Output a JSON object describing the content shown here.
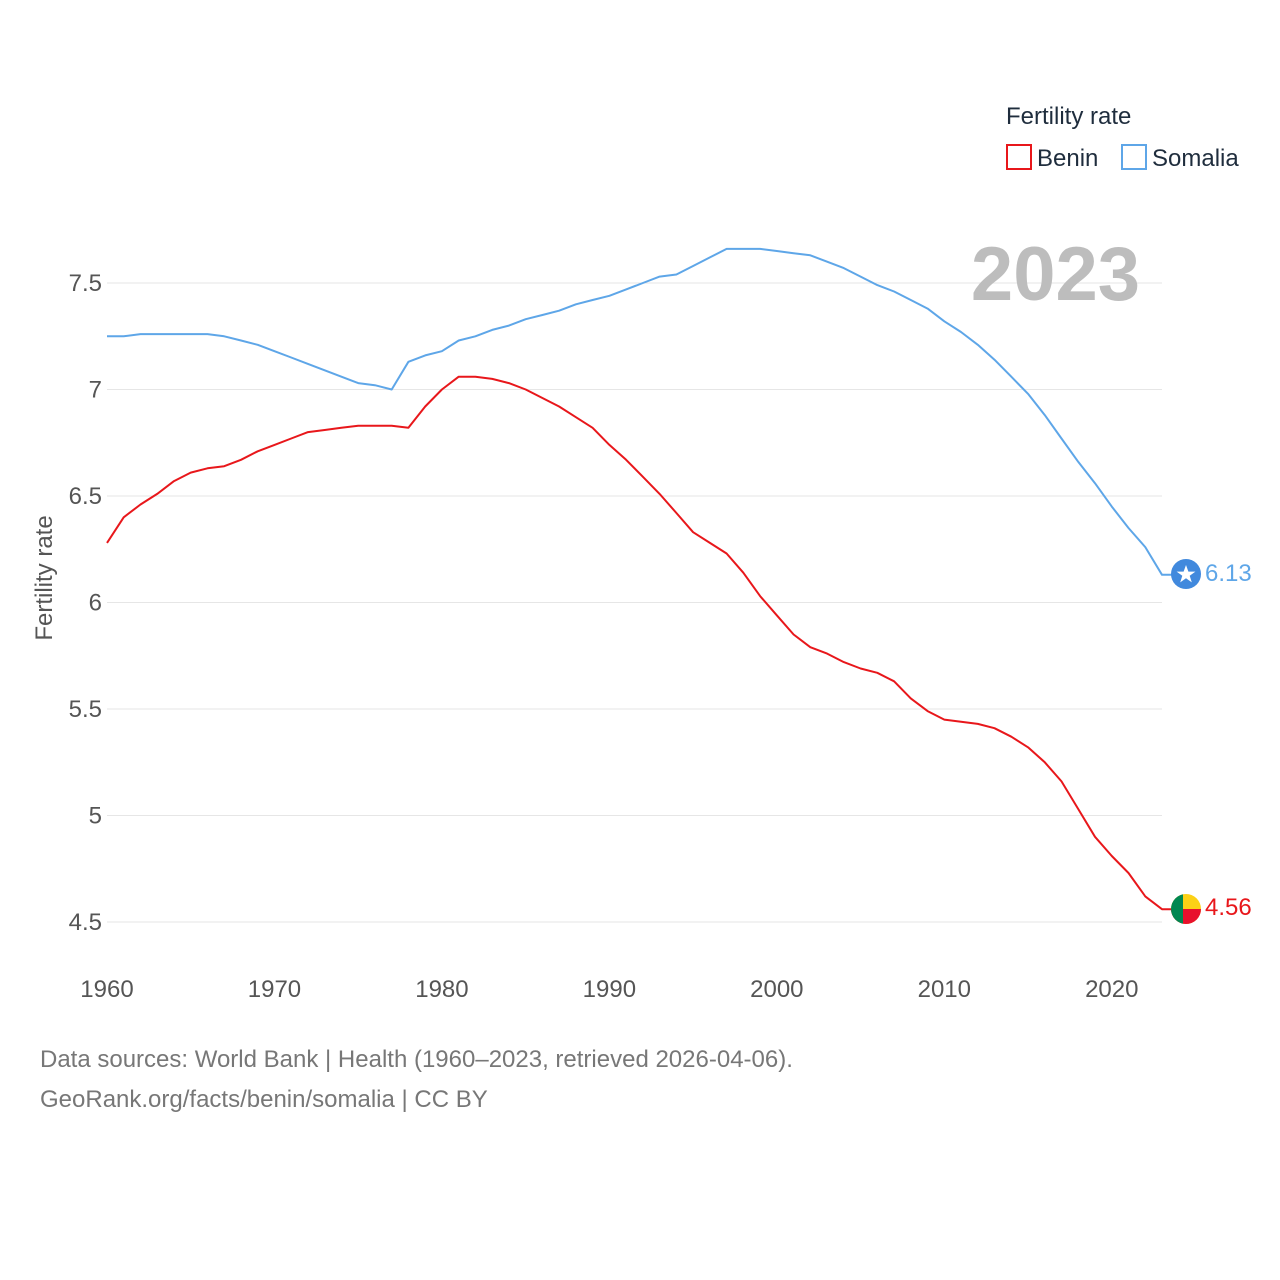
{
  "chart_data": {
    "type": "line",
    "title": "Fertility rate",
    "xlabel": "",
    "ylabel": "Fertility rate",
    "year_overlay": "2023",
    "xlim": [
      1960,
      2023
    ],
    "ylim": [
      4.5,
      7.5
    ],
    "x_ticks": [
      "1960",
      "1970",
      "1980",
      "1990",
      "2000",
      "2010",
      "2020"
    ],
    "y_ticks": [
      "4.5",
      "5",
      "5.5",
      "6",
      "6.5",
      "7",
      "7.5"
    ],
    "legend_title": "Fertility rate",
    "legend_position": "top-right",
    "x": [
      1960,
      1961,
      1962,
      1963,
      1964,
      1965,
      1966,
      1967,
      1968,
      1969,
      1970,
      1971,
      1972,
      1973,
      1974,
      1975,
      1976,
      1977,
      1978,
      1979,
      1980,
      1981,
      1982,
      1983,
      1984,
      1985,
      1986,
      1987,
      1988,
      1989,
      1990,
      1991,
      1992,
      1993,
      1994,
      1995,
      1996,
      1997,
      1998,
      1999,
      2000,
      2001,
      2002,
      2003,
      2004,
      2005,
      2006,
      2007,
      2008,
      2009,
      2010,
      2011,
      2012,
      2013,
      2014,
      2015,
      2016,
      2017,
      2018,
      2019,
      2020,
      2021,
      2022,
      2023
    ],
    "series": [
      {
        "name": "Benin",
        "color": "#e8171b",
        "end_label": "4.56",
        "values": [
          6.28,
          6.4,
          6.46,
          6.51,
          6.57,
          6.61,
          6.63,
          6.64,
          6.67,
          6.71,
          6.74,
          6.77,
          6.8,
          6.81,
          6.82,
          6.83,
          6.83,
          6.83,
          6.82,
          6.92,
          7.0,
          7.06,
          7.06,
          7.05,
          7.03,
          7.0,
          6.96,
          6.92,
          6.87,
          6.82,
          6.74,
          6.67,
          6.59,
          6.51,
          6.42,
          6.33,
          6.28,
          6.23,
          6.14,
          6.03,
          5.94,
          5.85,
          5.79,
          5.76,
          5.72,
          5.69,
          5.67,
          5.63,
          5.55,
          5.49,
          5.45,
          5.44,
          5.43,
          5.41,
          5.37,
          5.32,
          5.25,
          5.16,
          5.03,
          4.9,
          4.81,
          4.73,
          4.62,
          4.56
        ]
      },
      {
        "name": "Somalia",
        "color": "#5ea6e8",
        "end_label": "6.13",
        "values": [
          7.25,
          7.25,
          7.26,
          7.26,
          7.26,
          7.26,
          7.26,
          7.25,
          7.23,
          7.21,
          7.18,
          7.15,
          7.12,
          7.09,
          7.06,
          7.03,
          7.02,
          7.0,
          7.13,
          7.16,
          7.18,
          7.23,
          7.25,
          7.28,
          7.3,
          7.33,
          7.35,
          7.37,
          7.4,
          7.42,
          7.44,
          7.47,
          7.5,
          7.53,
          7.54,
          7.58,
          7.62,
          7.66,
          7.66,
          7.66,
          7.65,
          7.64,
          7.63,
          7.6,
          7.57,
          7.53,
          7.49,
          7.46,
          7.42,
          7.38,
          7.32,
          7.27,
          7.21,
          7.14,
          7.06,
          6.98,
          6.88,
          6.77,
          6.66,
          6.56,
          6.45,
          6.35,
          6.26,
          6.13
        ]
      }
    ]
  },
  "footer": {
    "line1": "Data sources: World Bank | Health (1960–2023, retrieved 2026-04-06).",
    "line2": "GeoRank.org/facts/benin/somalia | CC BY"
  }
}
